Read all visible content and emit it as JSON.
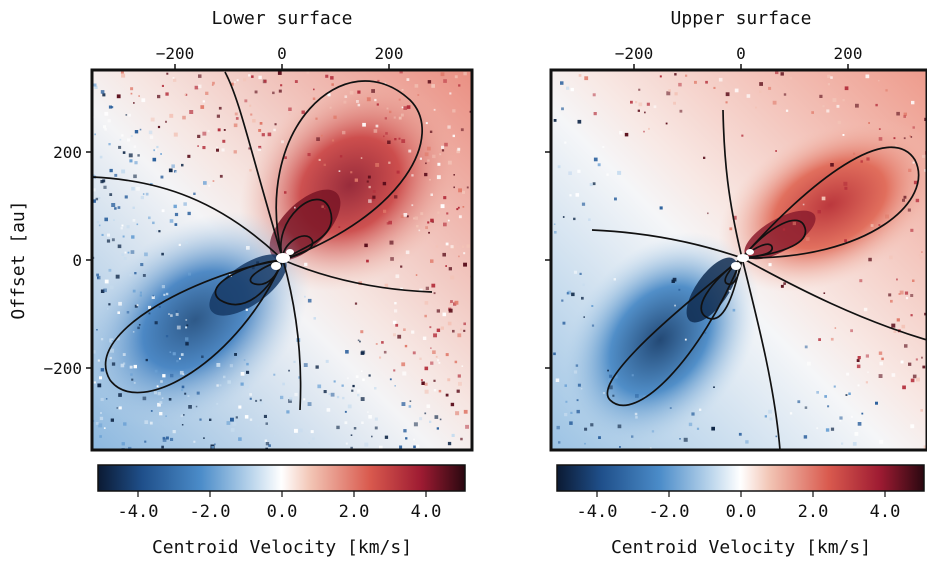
{
  "chart_data": [
    {
      "type": "heatmap",
      "title": "Lower surface",
      "ylabel": "Offset [au]",
      "x_ticks": [
        "−200",
        "0",
        "200"
      ],
      "y_ticks": [
        "200",
        "0",
        "−200"
      ],
      "xlim": [
        -350,
        350
      ],
      "ylim": [
        -350,
        350
      ],
      "colorbar": {
        "label": "Centroid Velocity [km/s]",
        "ticks": [
          "-4.0",
          "-2.0",
          "0.0",
          "2.0",
          "4.0"
        ],
        "vlim": [
          -5,
          5
        ],
        "colormap": [
          "#0b1a33",
          "#1f4f8a",
          "#4b8cc9",
          "#bcd6ec",
          "#ffffff",
          "#f2c4b4",
          "#d95a4e",
          "#9e1b32",
          "#2a0810"
        ]
      },
      "isovelocity_contours": true,
      "quadrants": {
        "red": "upper-right",
        "blue": "lower-left"
      }
    },
    {
      "type": "heatmap",
      "title": "Upper surface",
      "x_ticks": [
        "−200",
        "0",
        "200"
      ],
      "xlim": [
        -350,
        350
      ],
      "ylim": [
        -350,
        350
      ],
      "colorbar": {
        "label": "Centroid Velocity [km/s]",
        "ticks": [
          "-4.0",
          "-2.0",
          "0.0",
          "2.0",
          "4.0"
        ],
        "vlim": [
          -5,
          5
        ]
      },
      "isovelocity_contours": true,
      "quadrants": {
        "red": "upper-right",
        "blue": "lower-left"
      }
    }
  ]
}
